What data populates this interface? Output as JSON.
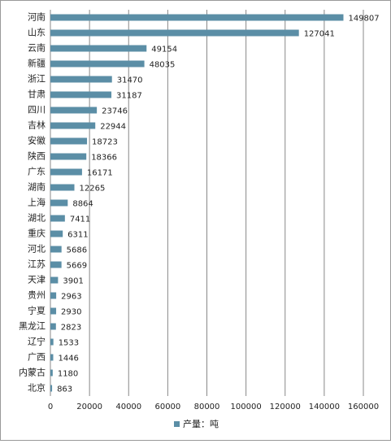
{
  "chart_data": {
    "type": "bar",
    "orientation": "horizontal",
    "categories": [
      "河南",
      "山东",
      "云南",
      "新疆",
      "浙江",
      "甘肃",
      "四川",
      "吉林",
      "安徽",
      "陕西",
      "广东",
      "湖南",
      "上海",
      "湖北",
      "重庆",
      "河北",
      "江苏",
      "天津",
      "贵州",
      "宁夏",
      "黑龙江",
      "辽宁",
      "广西",
      "内蒙古",
      "北京"
    ],
    "series": [
      {
        "name": "产量：吨",
        "color": "#5b8ea6",
        "values": [
          149807,
          127041,
          49154,
          48035,
          31470,
          31187,
          23746,
          22944,
          18723,
          18366,
          16171,
          12265,
          8864,
          7411,
          6311,
          5686,
          5669,
          3901,
          2963,
          2930,
          2823,
          1533,
          1446,
          1180,
          863
        ]
      }
    ],
    "xlim": [
      0,
      160000
    ],
    "xticks": [
      0,
      20000,
      40000,
      60000,
      80000,
      100000,
      120000,
      140000,
      160000
    ],
    "grid": true,
    "legend": "bottom"
  }
}
